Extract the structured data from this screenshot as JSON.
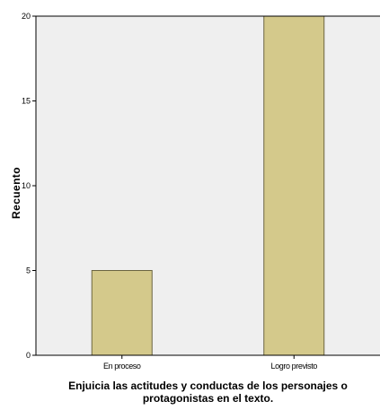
{
  "chart_data": {
    "type": "bar",
    "categories": [
      "En proceso",
      "Logro previsto"
    ],
    "values": [
      5,
      20
    ],
    "ylabel": "Recuento",
    "xlabel_line1": "Enjuicia las actitudes y conductas de los personajes o",
    "xlabel_line2": "protagonistas en el texto.",
    "ylim": [
      0,
      20
    ],
    "yticks": [
      "0",
      "5",
      "10",
      "15",
      "20"
    ],
    "grid": false,
    "colors": {
      "plot_bg": "#efefef",
      "bar_fill": "#d4c98b",
      "bar_stroke": "#6b6540",
      "axis": "#000000"
    }
  }
}
